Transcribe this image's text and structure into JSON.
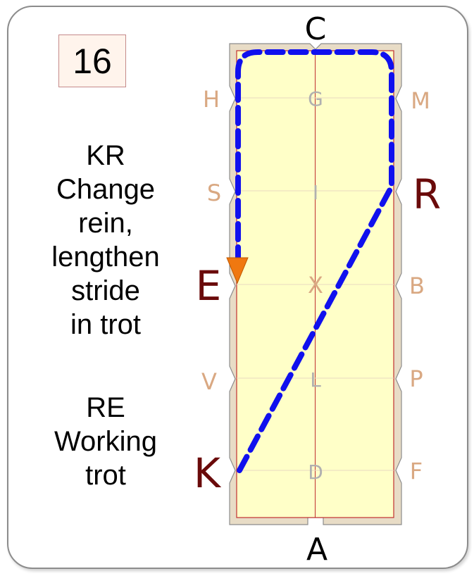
{
  "test_number": "16",
  "instructions": [
    {
      "lines": [
        "KR",
        "Change",
        "rein,",
        "lengthen",
        "stride",
        "in trot"
      ]
    },
    {
      "lines": [
        "RE",
        "Working",
        "trot"
      ]
    }
  ],
  "arena": {
    "end_letters": {
      "top": "C",
      "bottom": "A"
    },
    "left_letters": [
      "H",
      "S",
      "E",
      "V",
      "K"
    ],
    "right_letters": [
      "M",
      "R",
      "B",
      "P",
      "F"
    ],
    "center_letters": [
      "G",
      "I",
      "X",
      "L",
      "D"
    ],
    "highlighted_letters": [
      "E",
      "K",
      "R"
    ]
  },
  "colors": {
    "arena_fill": "#ffffc8",
    "arena_border": "#e8dcc6",
    "rail_line": "#c03030",
    "path": "#1010ee",
    "arrow": "#f07810",
    "faded_letter": "#d9a882",
    "highlight_letter": "#6a0a0a",
    "center_letter": "#b0b0b0"
  }
}
